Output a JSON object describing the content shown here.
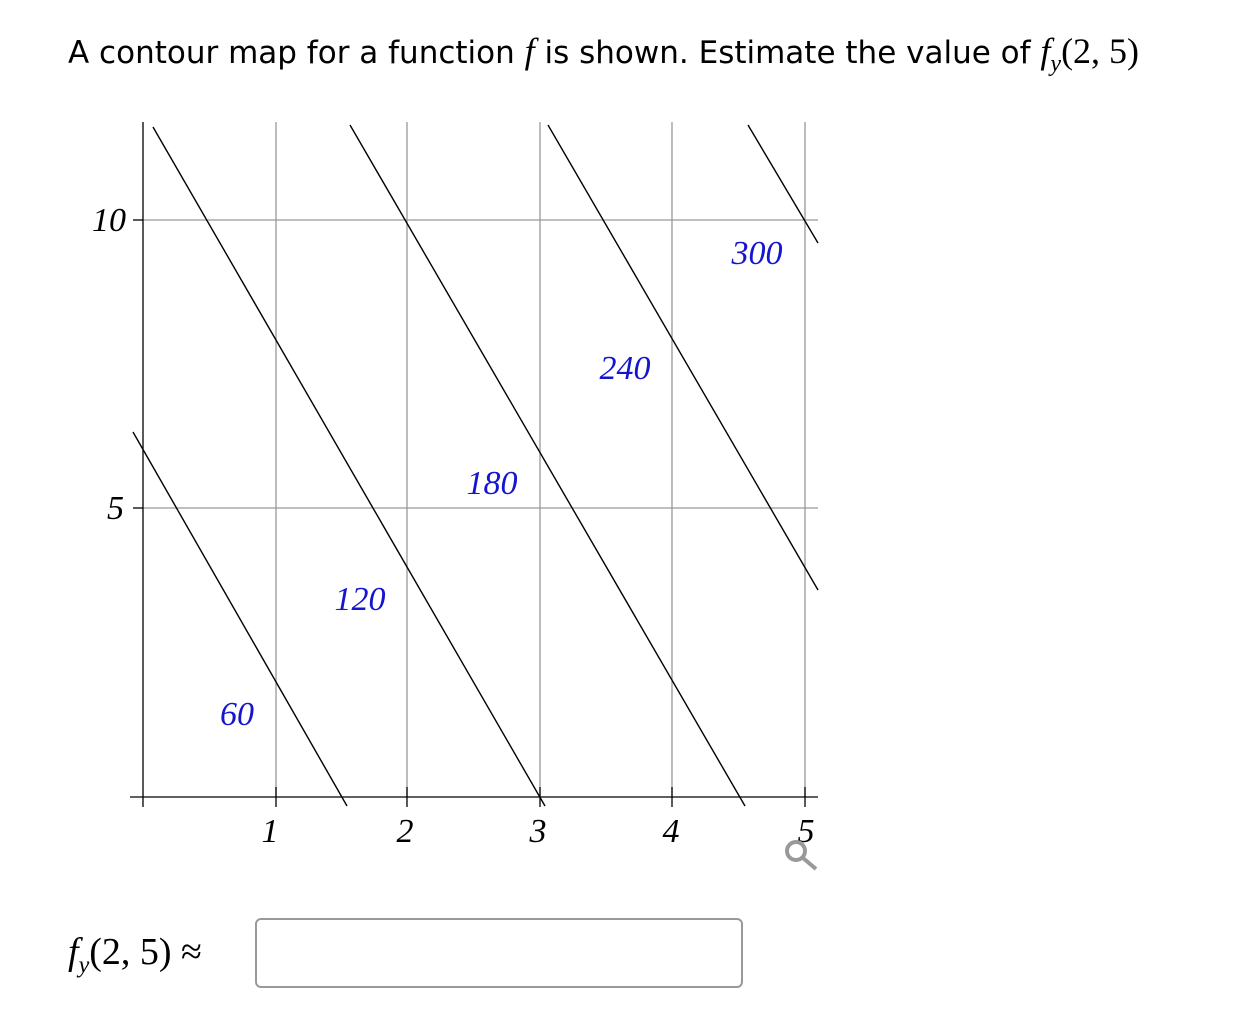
{
  "question": {
    "text": "A contour map for a function",
    "f": "f",
    "text2": "is shown. Estimate the value of",
    "expr_f": "f",
    "expr_sub": "y",
    "expr_args": "(2, 5)"
  },
  "plot": {
    "x_tick_labels": [
      "1",
      "2",
      "3",
      "4",
      "5"
    ],
    "y_tick_labels": [
      "10",
      "5"
    ],
    "contour_labels": [
      "60",
      "120",
      "180",
      "240",
      "300"
    ]
  },
  "answer": {
    "f": "f",
    "sub": "y",
    "args": "(2, 5)",
    "approx": "≈"
  }
}
